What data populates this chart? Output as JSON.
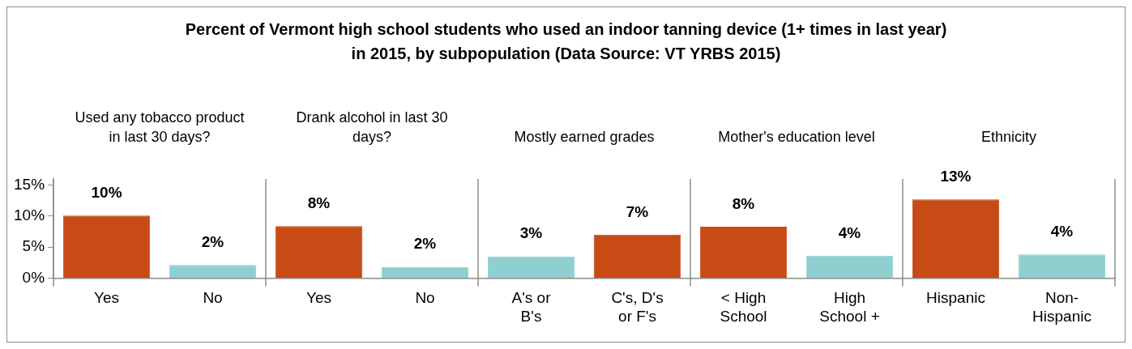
{
  "chart_data": {
    "type": "bar",
    "title": "Percent of Vermont high school students who used an indoor tanning device (1+ times in last year) in 2015, by subpopulation (Data Source: VT YRBS 2015)",
    "annotations": [
      "Used any tobacco product in last 30 days?",
      "Drank alcohol in last 30 days?",
      "Mostly earned grades",
      "Mother's education level",
      "Ethnicity"
    ],
    "categories": [
      "Yes",
      "No",
      "Yes",
      "No",
      "A's or B's",
      "C's, D's or F's",
      "< High School",
      "High School +",
      "Hispanic",
      "Non-Hispanic"
    ],
    "values": [
      10.1,
      2.1,
      8.4,
      1.8,
      3.5,
      7.0,
      8.3,
      3.6,
      12.7,
      3.8
    ],
    "colors": [
      "#c84a14",
      "#8fcfcf",
      "#c84a14",
      "#8fcfcf",
      "#8fcfcf",
      "#c84a14",
      "#c84a14",
      "#8fcfcf",
      "#c84a14",
      "#8fcfcf"
    ],
    "value_labels": [
      "10%",
      "2%",
      "8%",
      "2%",
      "3%",
      "7%",
      "8%",
      "4%",
      "13%",
      "4%"
    ],
    "ylim": [
      0,
      16
    ],
    "yticks": [
      {
        "value": 0,
        "label": "0%"
      },
      {
        "value": 5,
        "label": "5%"
      },
      {
        "value": 10,
        "label": "10%"
      },
      {
        "value": 15,
        "label": "15%"
      }
    ],
    "grid": false,
    "legend": false
  }
}
